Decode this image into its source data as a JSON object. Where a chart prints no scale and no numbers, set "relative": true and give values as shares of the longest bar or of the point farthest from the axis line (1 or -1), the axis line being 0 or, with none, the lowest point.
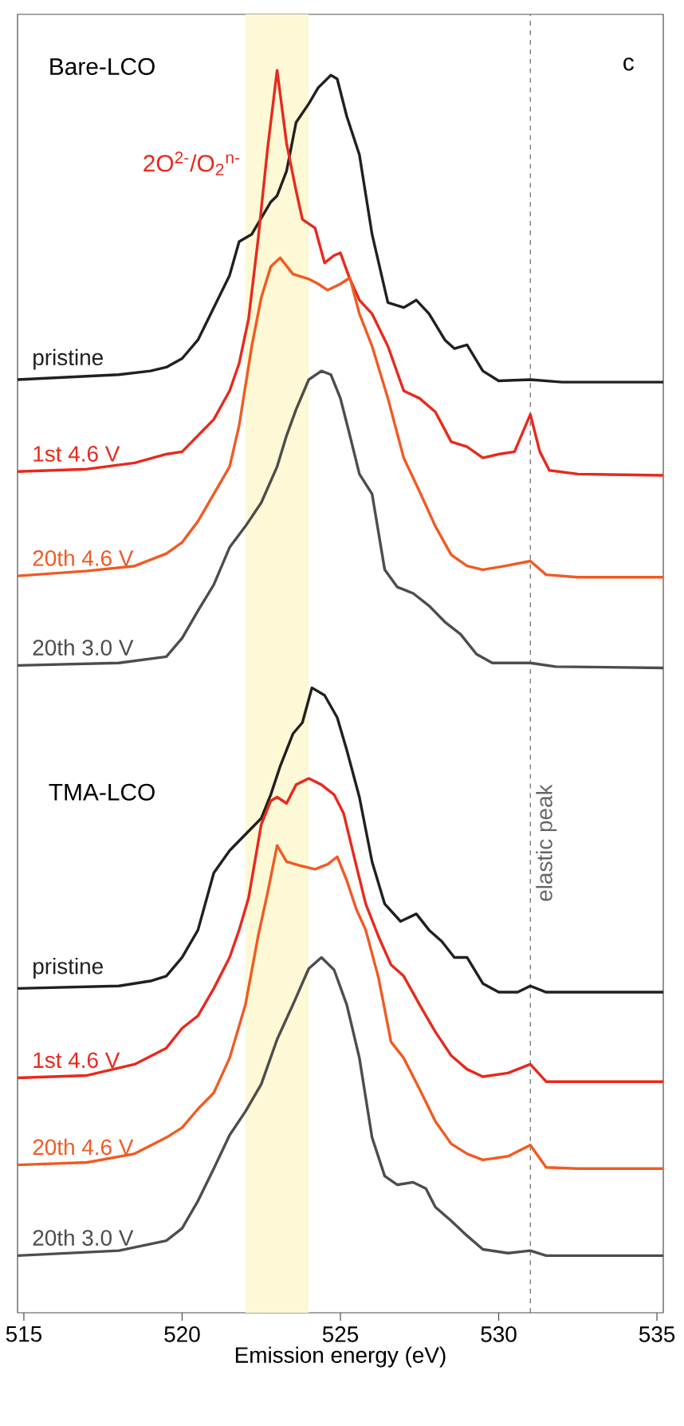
{
  "chart_data": {
    "type": "line",
    "relative": true,
    "xlabel": "Emission energy (eV)",
    "xlim": [
      514.8,
      535.2
    ],
    "xticks": [
      515,
      520,
      525,
      530,
      535
    ],
    "line_style": "solid",
    "annotations": [
      "Bare-LCO",
      "TMA-LCO",
      "c",
      "2O$^{2-}$/O$_{2}$$^{n-}$"
    ],
    "bands": [
      {
        "axis": "x",
        "from": 522,
        "to": 524,
        "color": "#fdf8d6"
      }
    ],
    "ref_lines": [
      {
        "axis": "x",
        "value": 531,
        "label": "elastic peak",
        "color": "#666666",
        "line_style": "dashed"
      }
    ],
    "series": [
      {
        "name": "pristine",
        "color": "#231f20",
        "x": [
          514.8,
          518,
          519,
          519.5,
          520,
          520.5,
          521,
          521.5,
          521.8,
          522.2,
          522.5,
          522.8,
          523,
          523.3,
          523.6,
          524,
          524.3,
          524.7,
          524.9,
          525.2,
          525.6,
          526,
          526.5,
          527,
          527.4,
          527.8,
          528.3,
          528.6,
          529,
          529.5,
          530,
          531,
          532,
          535.2
        ],
        "values": [
          0.751,
          0.755,
          0.758,
          0.761,
          0.768,
          0.783,
          0.809,
          0.835,
          0.862,
          0.868,
          0.881,
          0.894,
          0.899,
          0.919,
          0.958,
          0.973,
          0.986,
          0.996,
          0.993,
          0.963,
          0.932,
          0.868,
          0.813,
          0.809,
          0.815,
          0.804,
          0.783,
          0.776,
          0.779,
          0.758,
          0.75,
          0.751,
          0.749,
          0.749
        ]
      },
      {
        "name": "1st 4.6 V",
        "color": "#e8291c",
        "x": [
          514.8,
          517,
          518.5,
          519.5,
          520,
          520.5,
          521,
          521.5,
          521.8,
          522.1,
          522.4,
          522.7,
          523,
          523.3,
          523.6,
          523.8,
          524.2,
          524.5,
          524.8,
          525,
          525.3,
          525.6,
          526,
          526.5,
          527,
          527.5,
          528,
          528.5,
          529,
          529.5,
          530,
          530.5,
          531,
          531.3,
          531.6,
          532.5,
          535.2
        ],
        "values": [
          0.677,
          0.679,
          0.684,
          0.691,
          0.693,
          0.706,
          0.719,
          0.742,
          0.764,
          0.8,
          0.864,
          0.937,
          1,
          0.941,
          0.903,
          0.88,
          0.873,
          0.845,
          0.851,
          0.853,
          0.832,
          0.815,
          0.804,
          0.778,
          0.742,
          0.736,
          0.725,
          0.701,
          0.697,
          0.688,
          0.691,
          0.693,
          0.723,
          0.693,
          0.678,
          0.675,
          0.674
        ]
      },
      {
        "name": "20th 4.6 V",
        "color": "#f15a22",
        "x": [
          514.8,
          517,
          518.5,
          519.5,
          520,
          520.5,
          521,
          521.5,
          521.8,
          522.2,
          522.5,
          522.8,
          523.1,
          523.5,
          524,
          524.3,
          524.6,
          525,
          525.3,
          525.6,
          526,
          526.5,
          527,
          527.5,
          528,
          528.5,
          529,
          529.5,
          530.2,
          531,
          531.5,
          532.5,
          535.2
        ],
        "values": [
          0.593,
          0.597,
          0.601,
          0.611,
          0.62,
          0.637,
          0.659,
          0.681,
          0.714,
          0.778,
          0.817,
          0.842,
          0.849,
          0.836,
          0.832,
          0.828,
          0.823,
          0.828,
          0.833,
          0.804,
          0.778,
          0.736,
          0.688,
          0.661,
          0.633,
          0.61,
          0.601,
          0.598,
          0.601,
          0.605,
          0.594,
          0.592,
          0.592
        ]
      },
      {
        "name": "20th 3.0 V",
        "color": "#4d4d4d",
        "x": [
          514.8,
          518,
          519.5,
          520,
          520.5,
          521,
          521.5,
          522,
          522.5,
          523,
          523.3,
          523.6,
          524,
          524.4,
          524.7,
          525,
          525.3,
          525.6,
          526,
          526.4,
          526.8,
          527.3,
          527.8,
          528.3,
          528.8,
          529.3,
          529.8,
          531,
          531.8,
          535.2
        ],
        "values": [
          0.521,
          0.523,
          0.528,
          0.543,
          0.565,
          0.586,
          0.616,
          0.633,
          0.652,
          0.681,
          0.706,
          0.727,
          0.751,
          0.758,
          0.755,
          0.736,
          0.706,
          0.675,
          0.659,
          0.598,
          0.584,
          0.579,
          0.569,
          0.556,
          0.546,
          0.53,
          0.523,
          0.523,
          0.52,
          0.519
        ]
      },
      {
        "name": "pristine",
        "color": "#231f20",
        "x": [
          514.8,
          518,
          519,
          519.5,
          520,
          520.5,
          521,
          521.5,
          522,
          522.5,
          522.8,
          523.1,
          523.5,
          523.8,
          524.1,
          524.5,
          524.9,
          525.2,
          525.6,
          526,
          526.4,
          526.9,
          527.4,
          527.8,
          528.2,
          528.6,
          529,
          529.5,
          530,
          530.6,
          531,
          531.5,
          535.2
        ],
        "values": [
          0.261,
          0.263,
          0.267,
          0.271,
          0.286,
          0.308,
          0.354,
          0.372,
          0.385,
          0.398,
          0.417,
          0.44,
          0.466,
          0.475,
          0.503,
          0.497,
          0.479,
          0.453,
          0.415,
          0.363,
          0.329,
          0.315,
          0.321,
          0.308,
          0.299,
          0.286,
          0.286,
          0.265,
          0.258,
          0.258,
          0.263,
          0.258,
          0.258
        ]
      },
      {
        "name": "1st 4.6 V",
        "color": "#e8291c",
        "x": [
          514.8,
          517,
          518.5,
          519.5,
          520,
          520.5,
          521,
          521.5,
          521.8,
          522.1,
          522.5,
          522.8,
          523,
          523.3,
          523.6,
          524,
          524.4,
          524.8,
          525.1,
          525.5,
          525.8,
          526.2,
          526.6,
          527,
          527.5,
          528,
          528.5,
          529,
          529.5,
          530.3,
          531,
          531.5,
          532.5,
          535.2
        ],
        "values": [
          0.189,
          0.191,
          0.2,
          0.213,
          0.229,
          0.239,
          0.261,
          0.286,
          0.308,
          0.334,
          0.393,
          0.412,
          0.415,
          0.41,
          0.425,
          0.43,
          0.425,
          0.417,
          0.402,
          0.36,
          0.329,
          0.303,
          0.28,
          0.271,
          0.248,
          0.226,
          0.207,
          0.196,
          0.19,
          0.193,
          0.2,
          0.186,
          0.186,
          0.186
        ]
      },
      {
        "name": "20th 4.6 V",
        "color": "#f15a22",
        "x": [
          514.8,
          517,
          518.5,
          519.5,
          520,
          520.5,
          521,
          521.5,
          522,
          522.4,
          522.7,
          523,
          523.3,
          523.7,
          524.2,
          524.6,
          524.9,
          525.2,
          525.5,
          525.8,
          526.2,
          526.6,
          527,
          527.5,
          528,
          528.5,
          529,
          529.5,
          530.3,
          531,
          531.5,
          532.5,
          535.2
        ],
        "values": [
          0.119,
          0.121,
          0.128,
          0.141,
          0.149,
          0.164,
          0.177,
          0.205,
          0.248,
          0.303,
          0.338,
          0.376,
          0.363,
          0.36,
          0.357,
          0.361,
          0.367,
          0.348,
          0.325,
          0.308,
          0.27,
          0.218,
          0.205,
          0.18,
          0.154,
          0.136,
          0.128,
          0.123,
          0.126,
          0.135,
          0.117,
          0.116,
          0.116
        ]
      },
      {
        "name": "20th 3.0 V",
        "color": "#4d4d4d",
        "x": [
          514.8,
          518,
          519.5,
          520,
          520.5,
          521,
          521.5,
          522,
          522.5,
          523,
          523.5,
          524,
          524.4,
          524.8,
          525.2,
          525.6,
          526,
          526.4,
          526.8,
          527.3,
          527.7,
          528,
          528.5,
          529,
          529.5,
          530.3,
          531,
          531.5,
          535.2
        ],
        "values": [
          0.046,
          0.05,
          0.058,
          0.068,
          0.09,
          0.116,
          0.143,
          0.162,
          0.184,
          0.22,
          0.248,
          0.277,
          0.286,
          0.276,
          0.248,
          0.205,
          0.141,
          0.11,
          0.103,
          0.105,
          0.1,
          0.085,
          0.074,
          0.062,
          0.051,
          0.048,
          0.05,
          0.046,
          0.046
        ]
      }
    ]
  }
}
